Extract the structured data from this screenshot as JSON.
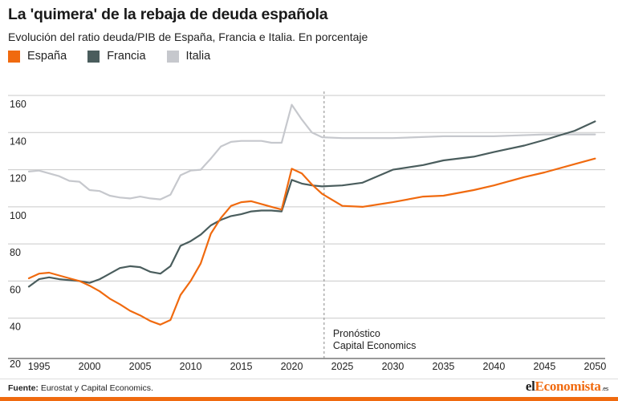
{
  "header": {
    "title": "La 'quimera' de la rebaja de deuda española",
    "subtitle": "Evolución del ratio deuda/PIB de España, Francia e Italia. En porcentaje"
  },
  "legend": [
    {
      "label": "España",
      "color": "#f06a0f"
    },
    {
      "label": "Francia",
      "color": "#4a5d5d"
    },
    {
      "label": "Italia",
      "color": "#c6c8cd"
    }
  ],
  "footer": {
    "source_label": "Fuente:",
    "source_text": "Eurostat y Capital Economics.",
    "brand_prefix": "el",
    "brand_accent": "Economista",
    "brand_suffix": ".es"
  },
  "chart_data": {
    "type": "line",
    "title": "La 'quimera' de la rebaja de deuda española",
    "subtitle": "Evolución del ratio deuda/PIB de España, Francia e Italia. En porcentaje",
    "xlabel": "",
    "ylabel": "",
    "xlim": [
      1994,
      2051
    ],
    "ylim": [
      20,
      160
    ],
    "x_ticks": [
      1995,
      2000,
      2005,
      2010,
      2015,
      2020,
      2025,
      2030,
      2035,
      2040,
      2045,
      2050
    ],
    "y_ticks": [
      20,
      40,
      60,
      80,
      100,
      120,
      140,
      160
    ],
    "grid": "horizontal",
    "legend_position": "top-left",
    "annotation": {
      "x": 2023.2,
      "line1": "Pronóstico",
      "line2": "Capital Economics"
    },
    "series": [
      {
        "name": "Italia",
        "color": "#c6c8cd",
        "points": [
          [
            1994,
            119.0
          ],
          [
            1995,
            119.5
          ],
          [
            1996,
            118.0
          ],
          [
            1997,
            116.5
          ],
          [
            1998,
            114.0
          ],
          [
            1999,
            113.5
          ],
          [
            2000,
            109.0
          ],
          [
            2001,
            108.5
          ],
          [
            2002,
            106.0
          ],
          [
            2003,
            105.0
          ],
          [
            2004,
            104.5
          ],
          [
            2005,
            105.5
          ],
          [
            2006,
            104.5
          ],
          [
            2007,
            104.0
          ],
          [
            2008,
            106.5
          ],
          [
            2009,
            117.0
          ],
          [
            2010,
            119.5
          ],
          [
            2011,
            120.0
          ],
          [
            2012,
            126.0
          ],
          [
            2013,
            132.5
          ],
          [
            2014,
            135.0
          ],
          [
            2015,
            135.5
          ],
          [
            2016,
            135.5
          ],
          [
            2017,
            135.5
          ],
          [
            2018,
            134.5
          ],
          [
            2019,
            134.5
          ],
          [
            2020,
            155.0
          ],
          [
            2021,
            147.0
          ],
          [
            2022,
            140.0
          ],
          [
            2023,
            137.5
          ],
          [
            2025,
            137.0
          ],
          [
            2030,
            137.0
          ],
          [
            2035,
            138.0
          ],
          [
            2040,
            138.0
          ],
          [
            2045,
            139.0
          ],
          [
            2050,
            139.0
          ]
        ]
      },
      {
        "name": "Francia",
        "color": "#4a5d5d",
        "points": [
          [
            1994,
            57.0
          ],
          [
            1995,
            61.0
          ],
          [
            1996,
            62.0
          ],
          [
            1997,
            61.0
          ],
          [
            1998,
            60.5
          ],
          [
            1999,
            60.0
          ],
          [
            2000,
            59.0
          ],
          [
            2001,
            61.0
          ],
          [
            2002,
            64.0
          ],
          [
            2003,
            67.0
          ],
          [
            2004,
            68.0
          ],
          [
            2005,
            67.5
          ],
          [
            2006,
            65.0
          ],
          [
            2007,
            64.0
          ],
          [
            2008,
            68.0
          ],
          [
            2009,
            79.0
          ],
          [
            2010,
            81.5
          ],
          [
            2011,
            85.0
          ],
          [
            2012,
            90.0
          ],
          [
            2013,
            93.0
          ],
          [
            2014,
            95.0
          ],
          [
            2015,
            96.0
          ],
          [
            2016,
            97.5
          ],
          [
            2017,
            98.0
          ],
          [
            2018,
            98.0
          ],
          [
            2019,
            97.5
          ],
          [
            2020,
            114.5
          ],
          [
            2021,
            112.5
          ],
          [
            2022,
            111.5
          ],
          [
            2023,
            111.0
          ],
          [
            2025,
            111.5
          ],
          [
            2027,
            113.0
          ],
          [
            2030,
            120.0
          ],
          [
            2033,
            122.5
          ],
          [
            2035,
            125.0
          ],
          [
            2038,
            127.0
          ],
          [
            2040,
            129.5
          ],
          [
            2043,
            133.0
          ],
          [
            2045,
            136.0
          ],
          [
            2048,
            141.0
          ],
          [
            2050,
            146.0
          ]
        ]
      },
      {
        "name": "España",
        "color": "#f06a0f",
        "points": [
          [
            1994,
            61.5
          ],
          [
            1995,
            64.0
          ],
          [
            1996,
            64.5
          ],
          [
            1997,
            63.0
          ],
          [
            1998,
            61.5
          ],
          [
            1999,
            60.0
          ],
          [
            2000,
            57.5
          ],
          [
            2001,
            54.5
          ],
          [
            2002,
            50.5
          ],
          [
            2003,
            47.5
          ],
          [
            2004,
            44.0
          ],
          [
            2005,
            41.5
          ],
          [
            2006,
            38.5
          ],
          [
            2007,
            36.5
          ],
          [
            2008,
            39.0
          ],
          [
            2009,
            52.5
          ],
          [
            2010,
            60.0
          ],
          [
            2011,
            69.5
          ],
          [
            2012,
            85.5
          ],
          [
            2013,
            94.0
          ],
          [
            2014,
            100.5
          ],
          [
            2015,
            102.5
          ],
          [
            2016,
            103.0
          ],
          [
            2017,
            101.5
          ],
          [
            2018,
            100.0
          ],
          [
            2019,
            98.5
          ],
          [
            2020,
            120.5
          ],
          [
            2021,
            118.0
          ],
          [
            2022,
            112.0
          ],
          [
            2023,
            107.0
          ],
          [
            2025,
            100.5
          ],
          [
            2027,
            100.0
          ],
          [
            2030,
            102.5
          ],
          [
            2033,
            105.5
          ],
          [
            2035,
            106.0
          ],
          [
            2038,
            109.0
          ],
          [
            2040,
            111.5
          ],
          [
            2043,
            116.0
          ],
          [
            2045,
            118.5
          ],
          [
            2048,
            123.0
          ],
          [
            2050,
            126.0
          ]
        ]
      }
    ]
  }
}
